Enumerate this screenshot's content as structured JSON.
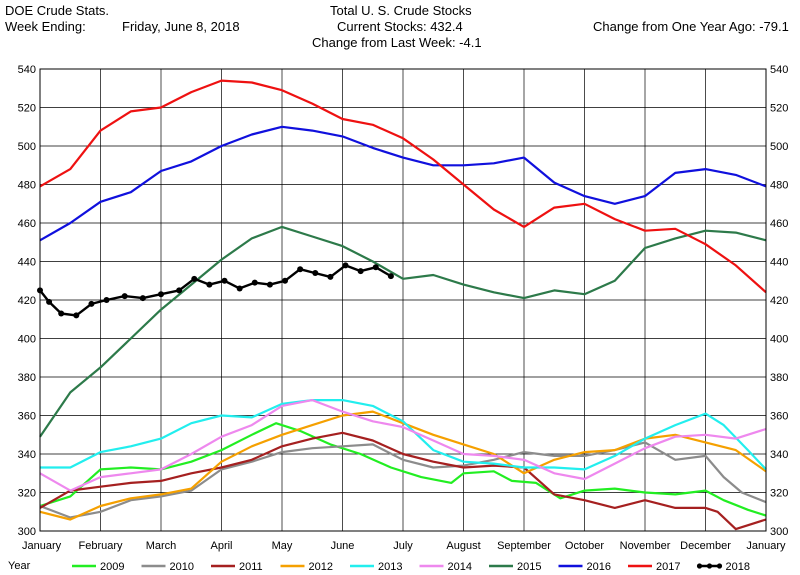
{
  "header": {
    "left_line1": "DOE Crude Stats.",
    "left_line2_label": "Week Ending:",
    "left_line2_value": "Friday, June 8, 2018",
    "center_line1": "Total U. S. Crude Stocks",
    "center_line2": "Current Stocks: 432.4",
    "center_line3": "Change from Last Week:  -4.1",
    "right_line2": "Change from One Year Ago: -79.1"
  },
  "chart_data": {
    "type": "line",
    "title": "Total U. S. Crude Stocks",
    "xlabel": "",
    "ylabel": "",
    "legend_title": "Year",
    "legend_position": "bottom",
    "grid": true,
    "x_unit": "month (0 = January 1, 12 = next January 1)",
    "xlim": [
      0,
      12
    ],
    "ylim": [
      300,
      540
    ],
    "yticks": [
      300,
      320,
      340,
      360,
      380,
      400,
      420,
      440,
      460,
      480,
      500,
      520,
      540
    ],
    "month_labels": [
      "January",
      "February",
      "March",
      "April",
      "May",
      "June",
      "July",
      "August",
      "September",
      "October",
      "November",
      "December",
      "January"
    ],
    "series": [
      {
        "name": "2009",
        "color": "#22ee22",
        "points": [
          [
            0,
            313
          ],
          [
            0.5,
            318
          ],
          [
            1,
            332
          ],
          [
            1.5,
            333
          ],
          [
            2,
            332
          ],
          [
            2.5,
            336
          ],
          [
            3,
            342
          ],
          [
            3.5,
            350
          ],
          [
            3.9,
            356
          ],
          [
            4.3,
            352
          ],
          [
            4.8,
            345
          ],
          [
            5.3,
            340
          ],
          [
            5.8,
            333
          ],
          [
            6.3,
            328
          ],
          [
            6.8,
            325
          ],
          [
            7,
            330
          ],
          [
            7.5,
            331
          ],
          [
            7.8,
            326
          ],
          [
            8.2,
            325
          ],
          [
            8.6,
            317
          ],
          [
            9,
            321
          ],
          [
            9.5,
            322
          ],
          [
            10,
            320
          ],
          [
            10.5,
            319
          ],
          [
            11,
            321
          ],
          [
            11.3,
            316
          ],
          [
            11.7,
            311
          ],
          [
            12,
            308
          ]
        ]
      },
      {
        "name": "2010",
        "color": "#8c8c8c",
        "points": [
          [
            0,
            313
          ],
          [
            0.5,
            307
          ],
          [
            1,
            310
          ],
          [
            1.5,
            316
          ],
          [
            2,
            318
          ],
          [
            2.5,
            321
          ],
          [
            3,
            332
          ],
          [
            3.5,
            336
          ],
          [
            4,
            341
          ],
          [
            4.5,
            343
          ],
          [
            5,
            344
          ],
          [
            5.5,
            345
          ],
          [
            6,
            337
          ],
          [
            6.5,
            333
          ],
          [
            7,
            334
          ],
          [
            7.5,
            337
          ],
          [
            8,
            341
          ],
          [
            8.5,
            339
          ],
          [
            9,
            339
          ],
          [
            9.5,
            342
          ],
          [
            10,
            346
          ],
          [
            10.5,
            337
          ],
          [
            11,
            339
          ],
          [
            11.3,
            328
          ],
          [
            11.6,
            320
          ],
          [
            12,
            315
          ]
        ]
      },
      {
        "name": "2011",
        "color": "#a52020",
        "points": [
          [
            0,
            312
          ],
          [
            0.5,
            321
          ],
          [
            1,
            323
          ],
          [
            1.5,
            325
          ],
          [
            2,
            326
          ],
          [
            2.5,
            330
          ],
          [
            3,
            333
          ],
          [
            3.5,
            337
          ],
          [
            4,
            344
          ],
          [
            4.5,
            348
          ],
          [
            5,
            351
          ],
          [
            5.5,
            347
          ],
          [
            6,
            340
          ],
          [
            6.5,
            336
          ],
          [
            7,
            333
          ],
          [
            7.5,
            334
          ],
          [
            8,
            333
          ],
          [
            8.5,
            319
          ],
          [
            9,
            316
          ],
          [
            9.5,
            312
          ],
          [
            10,
            316
          ],
          [
            10.5,
            312
          ],
          [
            11,
            312
          ],
          [
            11.2,
            310
          ],
          [
            11.5,
            301
          ],
          [
            12,
            306
          ]
        ]
      },
      {
        "name": "2012",
        "color": "#f5a000",
        "points": [
          [
            0,
            310
          ],
          [
            0.5,
            306
          ],
          [
            1,
            313
          ],
          [
            1.5,
            317
          ],
          [
            2,
            319
          ],
          [
            2.5,
            322
          ],
          [
            3,
            336
          ],
          [
            3.5,
            344
          ],
          [
            4,
            350
          ],
          [
            4.5,
            355
          ],
          [
            5,
            360
          ],
          [
            5.5,
            362
          ],
          [
            6,
            356
          ],
          [
            6.5,
            350
          ],
          [
            7,
            345
          ],
          [
            7.5,
            340
          ],
          [
            8,
            330
          ],
          [
            8.5,
            337
          ],
          [
            9,
            341
          ],
          [
            9.5,
            342
          ],
          [
            10,
            348
          ],
          [
            10.5,
            350
          ],
          [
            11,
            346
          ],
          [
            11.5,
            342
          ],
          [
            12,
            331
          ]
        ]
      },
      {
        "name": "2013",
        "color": "#22eeee",
        "points": [
          [
            0,
            333
          ],
          [
            0.5,
            333
          ],
          [
            1,
            341
          ],
          [
            1.5,
            344
          ],
          [
            2,
            348
          ],
          [
            2.5,
            356
          ],
          [
            3,
            360
          ],
          [
            3.5,
            359
          ],
          [
            4,
            366
          ],
          [
            4.5,
            368
          ],
          [
            5,
            368
          ],
          [
            5.5,
            365
          ],
          [
            6,
            357
          ],
          [
            6.5,
            342
          ],
          [
            7,
            336
          ],
          [
            7.5,
            335
          ],
          [
            8,
            333
          ],
          [
            8.5,
            333
          ],
          [
            9,
            332
          ],
          [
            9.5,
            339
          ],
          [
            10,
            348
          ],
          [
            10.5,
            355
          ],
          [
            11,
            361
          ],
          [
            11.3,
            355
          ],
          [
            11.7,
            342
          ],
          [
            12,
            332
          ]
        ]
      },
      {
        "name": "2014",
        "color": "#ee88ee",
        "points": [
          [
            0,
            330
          ],
          [
            0.5,
            321
          ],
          [
            1,
            328
          ],
          [
            1.5,
            330
          ],
          [
            2,
            332
          ],
          [
            2.5,
            340
          ],
          [
            3,
            349
          ],
          [
            3.5,
            355
          ],
          [
            4,
            365
          ],
          [
            4.5,
            368
          ],
          [
            5,
            362
          ],
          [
            5.5,
            357
          ],
          [
            6,
            354
          ],
          [
            6.5,
            347
          ],
          [
            7,
            340
          ],
          [
            7.5,
            339
          ],
          [
            8,
            337
          ],
          [
            8.5,
            330
          ],
          [
            9,
            327
          ],
          [
            9.5,
            335
          ],
          [
            10,
            343
          ],
          [
            10.5,
            349
          ],
          [
            11,
            350
          ],
          [
            11.5,
            348
          ],
          [
            12,
            353
          ]
        ]
      },
      {
        "name": "2015",
        "color": "#2d7a4a",
        "points": [
          [
            0,
            349
          ],
          [
            0.5,
            372
          ],
          [
            1,
            385
          ],
          [
            1.5,
            400
          ],
          [
            2,
            415
          ],
          [
            2.5,
            428
          ],
          [
            3,
            441
          ],
          [
            3.5,
            452
          ],
          [
            4,
            458
          ],
          [
            4.5,
            453
          ],
          [
            5,
            448
          ],
          [
            5.5,
            440
          ],
          [
            6,
            431
          ],
          [
            6.5,
            433
          ],
          [
            7,
            428
          ],
          [
            7.5,
            424
          ],
          [
            8,
            421
          ],
          [
            8.5,
            425
          ],
          [
            9,
            423
          ],
          [
            9.5,
            430
          ],
          [
            10,
            447
          ],
          [
            10.5,
            452
          ],
          [
            11,
            456
          ],
          [
            11.5,
            455
          ],
          [
            12,
            451
          ]
        ]
      },
      {
        "name": "2016",
        "color": "#1010dd",
        "points": [
          [
            0,
            451
          ],
          [
            0.5,
            460
          ],
          [
            1,
            471
          ],
          [
            1.5,
            476
          ],
          [
            2,
            487
          ],
          [
            2.5,
            492
          ],
          [
            3,
            500
          ],
          [
            3.5,
            506
          ],
          [
            4,
            510
          ],
          [
            4.5,
            508
          ],
          [
            5,
            505
          ],
          [
            5.5,
            499
          ],
          [
            6,
            494
          ],
          [
            6.5,
            490
          ],
          [
            7,
            490
          ],
          [
            7.5,
            491
          ],
          [
            8,
            494
          ],
          [
            8.5,
            481
          ],
          [
            9,
            474
          ],
          [
            9.5,
            470
          ],
          [
            10,
            474
          ],
          [
            10.5,
            486
          ],
          [
            11,
            488
          ],
          [
            11.5,
            485
          ],
          [
            12,
            479
          ]
        ]
      },
      {
        "name": "2017",
        "color": "#ee1111",
        "points": [
          [
            0,
            479
          ],
          [
            0.5,
            488
          ],
          [
            1,
            508
          ],
          [
            1.5,
            518
          ],
          [
            2,
            520
          ],
          [
            2.5,
            528
          ],
          [
            3,
            534
          ],
          [
            3.5,
            533
          ],
          [
            4,
            529
          ],
          [
            4.5,
            522
          ],
          [
            5,
            514
          ],
          [
            5.5,
            511
          ],
          [
            6,
            504
          ],
          [
            6.5,
            493
          ],
          [
            7,
            480
          ],
          [
            7.5,
            467
          ],
          [
            8,
            458
          ],
          [
            8.5,
            468
          ],
          [
            9,
            470
          ],
          [
            9.5,
            462
          ],
          [
            10,
            456
          ],
          [
            10.5,
            457
          ],
          [
            11,
            449
          ],
          [
            11.5,
            438
          ],
          [
            12,
            424
          ]
        ]
      },
      {
        "name": "2018",
        "color": "#000000",
        "points": [
          [
            0,
            425
          ],
          [
            0.15,
            419
          ],
          [
            0.35,
            413
          ],
          [
            0.6,
            412
          ],
          [
            0.85,
            418
          ],
          [
            1.1,
            420
          ],
          [
            1.4,
            422
          ],
          [
            1.7,
            421
          ],
          [
            2,
            423
          ],
          [
            2.3,
            425
          ],
          [
            2.55,
            431
          ],
          [
            2.8,
            428
          ],
          [
            3.05,
            430
          ],
          [
            3.3,
            426
          ],
          [
            3.55,
            429
          ],
          [
            3.8,
            428
          ],
          [
            4.05,
            430
          ],
          [
            4.3,
            436
          ],
          [
            4.55,
            434
          ],
          [
            4.8,
            432
          ],
          [
            5.05,
            438
          ],
          [
            5.3,
            435
          ],
          [
            5.55,
            437
          ],
          [
            5.8,
            432.4
          ]
        ]
      }
    ]
  }
}
